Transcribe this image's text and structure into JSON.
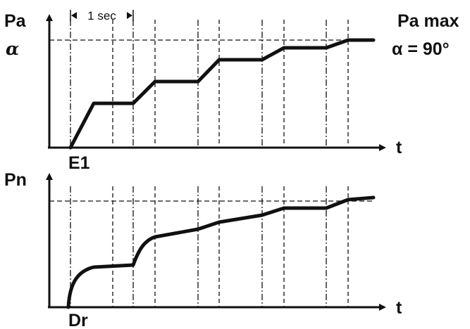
{
  "top_chart": {
    "y_label": "Pa",
    "y_label_2": "α",
    "x_label": "t",
    "start_label": "E1",
    "max_label": "Pa max",
    "angle_label": "α = 90°",
    "interval_label": "1 sec"
  },
  "bottom_chart": {
    "y_label": "Pn",
    "x_label": "t",
    "start_label": "Dr"
  },
  "colors": {
    "ink": "#111111",
    "background": "#ffffff"
  }
}
